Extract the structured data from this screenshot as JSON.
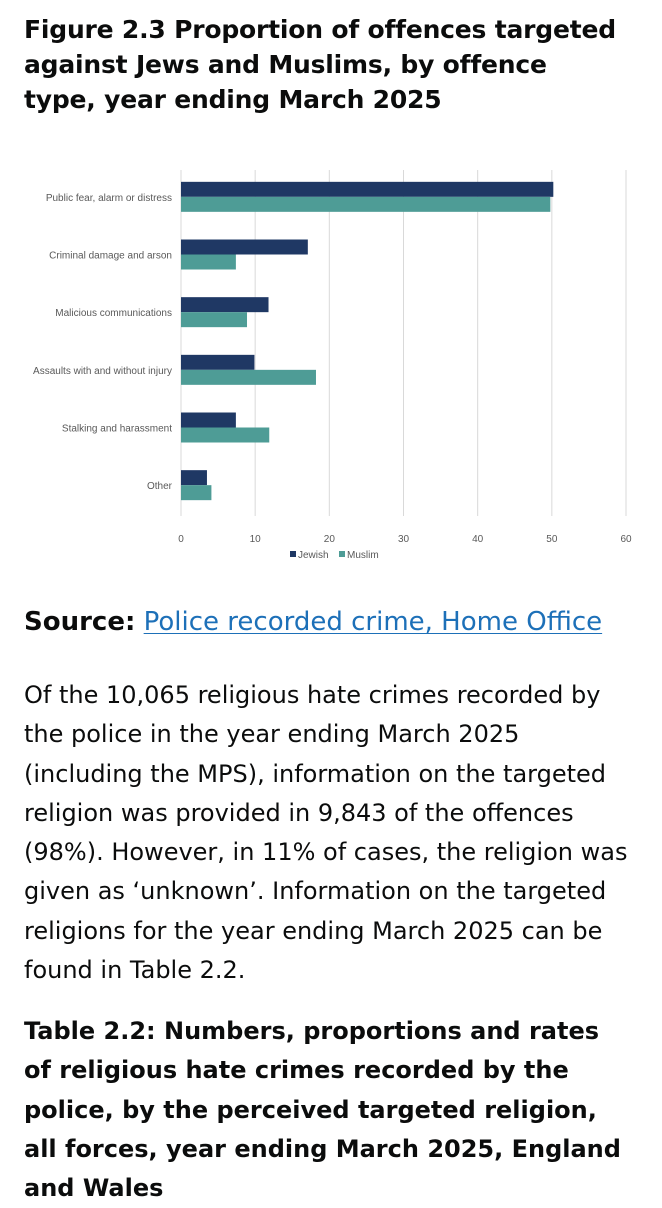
{
  "figure": {
    "title": "Figure 2.3 Proportion of offences targeted against Jews and Muslims, by offence type, year ending March 2025"
  },
  "chart_data": {
    "type": "bar",
    "orientation": "horizontal",
    "categories": [
      "Public fear, alarm or distress",
      "Criminal damage and arson",
      "Malicious communications",
      "Assaults with and without injury",
      "Stalking and harassment",
      "Other"
    ],
    "series": [
      {
        "name": "Jewish",
        "color": "#1f3864",
        "values": [
          50.2,
          17.1,
          11.8,
          9.9,
          7.4,
          3.5
        ]
      },
      {
        "name": "Muslim",
        "color": "#4e9c96",
        "values": [
          49.8,
          7.4,
          8.9,
          18.2,
          11.9,
          4.1
        ]
      }
    ],
    "xlim": [
      0,
      60
    ],
    "x_ticks": [
      "0",
      "10",
      "20",
      "30",
      "40",
      "50",
      "60"
    ],
    "grid": "vertical",
    "legend_position": "bottom-center",
    "title": "",
    "xlabel": "",
    "ylabel": ""
  },
  "source": {
    "label": "Source:",
    "link_text": "Police recorded crime, Home Office"
  },
  "paragraph": "Of the 10,065 religious hate crimes recorded by the police in the year ending March 2025 (including the MPS), information on the targeted religion was provided in 9,843 of the offences (98%). However, in 11% of cases, the religion was given as ‘unknown’. Information on the targeted religions for the year ending March 2025 can be found in Table 2.2.",
  "table": {
    "title": "Table 2.2: Numbers, proportions and rates of religious hate crimes recorded by the police, by the perceived targeted religion, all forces, year ending March 2025, England and Wales"
  }
}
